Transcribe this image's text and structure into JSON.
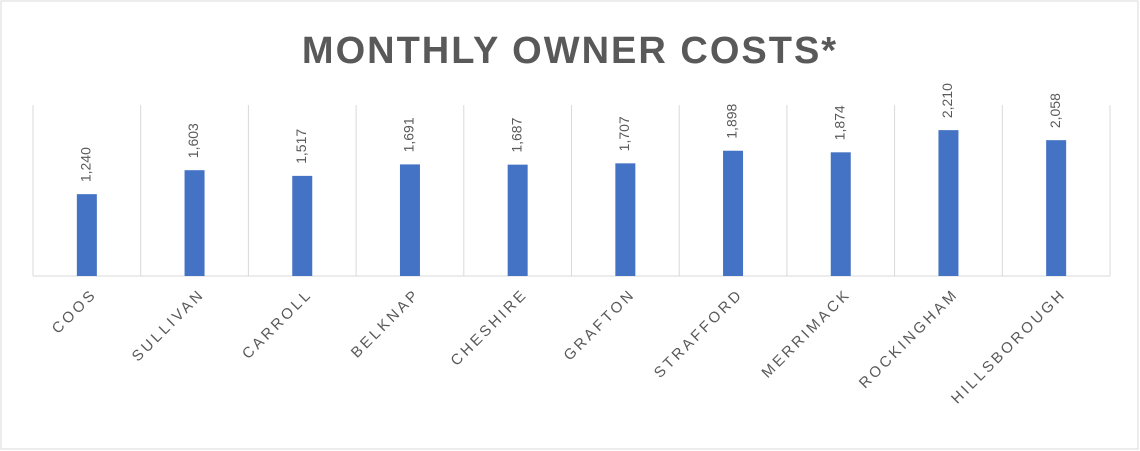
{
  "chart_data": {
    "type": "bar",
    "title": "MONTHLY OWNER COSTS*",
    "categories": [
      "COOS",
      "SULLIVAN",
      "CARROLL",
      "BELKNAP",
      "CHESHIRE",
      "GRAFTON",
      "STRAFFORD",
      "MERRIMACK",
      "ROCKINGHAM",
      "HILLSBOROUGH"
    ],
    "values": [
      1240,
      1603,
      1517,
      1691,
      1687,
      1707,
      1898,
      1874,
      2210,
      2058
    ],
    "value_labels": [
      "1,240",
      "1,603",
      "1,517",
      "1,691",
      "1,687",
      "1,707",
      "1,898",
      "1,874",
      "2,210",
      "2,058"
    ],
    "color": "#4472c4",
    "ylim": [
      0,
      2500
    ]
  }
}
